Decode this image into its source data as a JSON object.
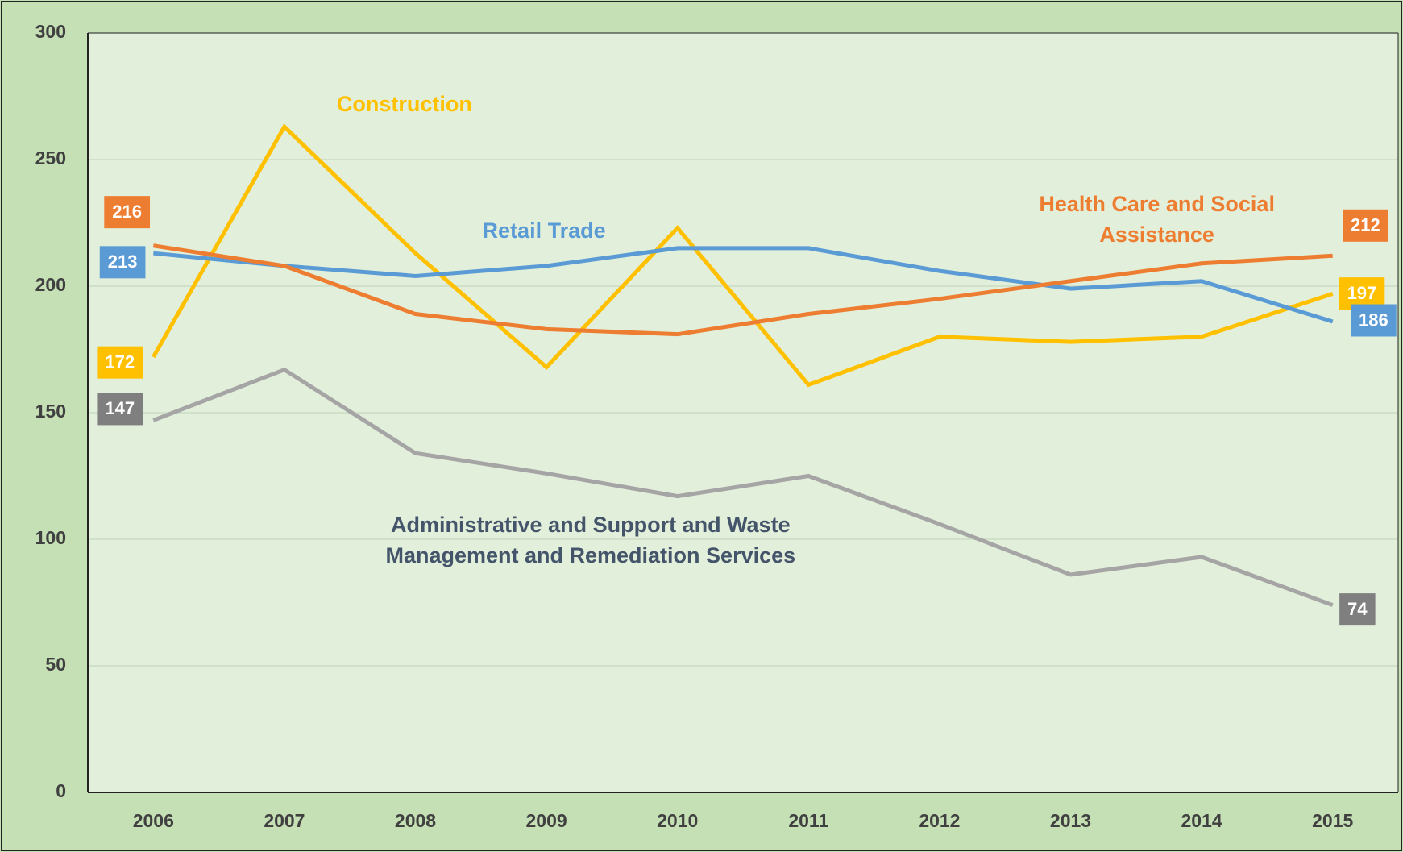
{
  "chart_data": {
    "type": "line",
    "categories": [
      "2006",
      "2007",
      "2008",
      "2009",
      "2010",
      "2011",
      "2012",
      "2013",
      "2014",
      "2015"
    ],
    "series": [
      {
        "name": "Construction",
        "color": "#ffc000",
        "values": [
          172,
          263,
          213,
          168,
          223,
          161,
          180,
          178,
          180,
          197
        ]
      },
      {
        "name": "Retail Trade",
        "color": "#5b9bd5",
        "values": [
          213,
          208,
          204,
          208,
          215,
          215,
          206,
          199,
          202,
          186
        ]
      },
      {
        "name": "Health Care and Social Assistance",
        "color": "#ed7d31",
        "values": [
          216,
          208,
          189,
          183,
          181,
          189,
          195,
          202,
          209,
          212
        ]
      },
      {
        "name": "Administrative and Support and Waste Management and Remediation Services",
        "color": "#a5a5a5",
        "values": [
          147,
          167,
          134,
          126,
          117,
          125,
          106,
          86,
          93,
          74
        ]
      }
    ],
    "ylim": [
      0,
      300
    ],
    "yticks": [
      0,
      50,
      100,
      150,
      200,
      250,
      300
    ],
    "grid": true
  }
}
